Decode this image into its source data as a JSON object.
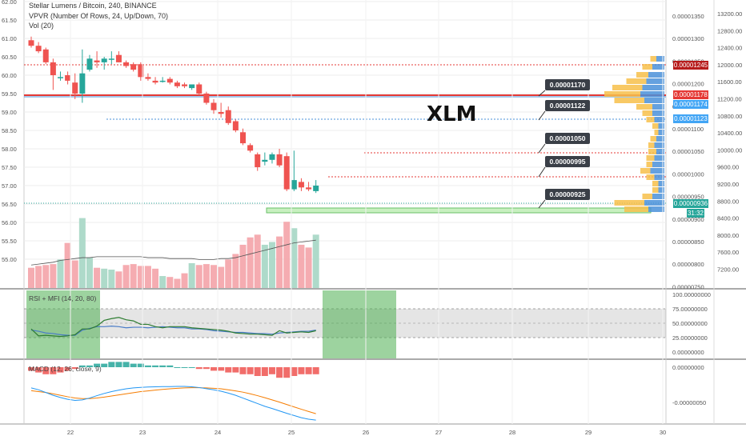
{
  "header": {
    "symbol_line": "Stellar Lumens / Bitcoin, 240, BINANCE",
    "vpvr_line": "VPVR (Number Of Rows, 24, Up/Down, 70)",
    "vol_line": "Vol (20)"
  },
  "annotation": "XLM",
  "callouts": [
    "0.00001170",
    "0.00001122",
    "0.00001050",
    "0.00000995",
    "0.00000925"
  ],
  "price_tags": {
    "red": "0.00001245",
    "red_line": "0.00001178",
    "blue1": "0.00001174",
    "blue2": "0.00001123",
    "current": "0.00000936",
    "timer": "31:32"
  },
  "indicators": {
    "rsi_label": "RSI + MFI (14, 20, 80)",
    "macd_label": "MACD (12, 26, close, 9)"
  },
  "colors": {
    "up": "#26a69a",
    "down": "#ef5350",
    "vol_up": "#a5d6c4",
    "vol_down": "#f4a3a8",
    "vpvr_up": "#f7c04a",
    "vpvr_down": "#4a90d9"
  },
  "chart_data": {
    "type": "candlestick",
    "x_ticks": [
      "22",
      "23",
      "24",
      "25",
      "26",
      "27",
      "28",
      "29",
      "30"
    ],
    "left_axis": [
      "62.00",
      "61.50",
      "61.00",
      "60.50",
      "60.00",
      "59.50",
      "59.00",
      "58.50",
      "58.00",
      "57.50",
      "57.00",
      "56.50",
      "56.00",
      "55.50",
      "55.00"
    ],
    "price_axis": [
      "0.00001350",
      "0.00001300",
      "0.00001250",
      "0.00001200",
      "0.00001150",
      "0.00001100",
      "0.00001050",
      "0.00001000",
      "0.00000950",
      "0.00000900",
      "0.00000850",
      "0.00000800",
      "0.00000750"
    ],
    "right_axis": [
      "13200.00",
      "12800.00",
      "12400.00",
      "12000.00",
      "11600.00",
      "11200.00",
      "10800.00",
      "10400.00",
      "10000.00",
      "9600.00",
      "9200.00",
      "8800.00",
      "8400.00",
      "8000.00",
      "7600.00",
      "7200.00"
    ],
    "rsi_axis": [
      "100.00000000",
      "75.00000000",
      "50.00000000",
      "25.00000000",
      "0.00000000"
    ],
    "macd_axis": [
      "0.00000000",
      "-0.00000050"
    ],
    "candles": [
      {
        "o": 60.95,
        "h": 61.05,
        "l": 60.75,
        "c": 60.8
      },
      {
        "o": 60.8,
        "h": 60.9,
        "l": 60.6,
        "c": 60.65
      },
      {
        "o": 60.7,
        "h": 60.75,
        "l": 60.3,
        "c": 60.35
      },
      {
        "o": 60.35,
        "h": 60.45,
        "l": 59.6,
        "c": 60.0
      },
      {
        "o": 59.95,
        "h": 60.1,
        "l": 59.85,
        "c": 59.95
      },
      {
        "o": 60.0,
        "h": 60.1,
        "l": 59.75,
        "c": 59.85
      },
      {
        "o": 59.8,
        "h": 60.05,
        "l": 59.35,
        "c": 59.5
      },
      {
        "o": 59.5,
        "h": 60.7,
        "l": 59.25,
        "c": 60.05
      },
      {
        "o": 60.15,
        "h": 60.55,
        "l": 60.1,
        "c": 60.45
      },
      {
        "o": 60.4,
        "h": 60.65,
        "l": 60.2,
        "c": 60.35
      },
      {
        "o": 60.35,
        "h": 60.5,
        "l": 60.15,
        "c": 60.45
      },
      {
        "o": 60.45,
        "h": 60.65,
        "l": 60.3,
        "c": 60.45
      },
      {
        "o": 60.55,
        "h": 60.65,
        "l": 60.35,
        "c": 60.35
      },
      {
        "o": 60.35,
        "h": 60.4,
        "l": 60.2,
        "c": 60.25
      },
      {
        "o": 60.3,
        "h": 60.35,
        "l": 60.1,
        "c": 60.15
      },
      {
        "o": 60.3,
        "h": 60.35,
        "l": 59.85,
        "c": 59.95
      },
      {
        "o": 59.95,
        "h": 60.05,
        "l": 59.85,
        "c": 59.9
      },
      {
        "o": 59.85,
        "h": 59.95,
        "l": 59.75,
        "c": 59.8
      },
      {
        "o": 59.85,
        "h": 59.95,
        "l": 59.8,
        "c": 59.85
      },
      {
        "o": 59.9,
        "h": 59.95,
        "l": 59.75,
        "c": 59.8
      },
      {
        "o": 59.8,
        "h": 59.85,
        "l": 59.65,
        "c": 59.7
      },
      {
        "o": 59.75,
        "h": 59.8,
        "l": 59.65,
        "c": 59.7
      },
      {
        "o": 59.65,
        "h": 59.75,
        "l": 59.6,
        "c": 59.75
      },
      {
        "o": 59.75,
        "h": 59.8,
        "l": 59.45,
        "c": 59.5
      },
      {
        "o": 59.5,
        "h": 59.55,
        "l": 59.2,
        "c": 59.25
      },
      {
        "o": 59.25,
        "h": 59.35,
        "l": 58.95,
        "c": 59.05
      },
      {
        "o": 59.0,
        "h": 59.25,
        "l": 58.85,
        "c": 58.95
      },
      {
        "o": 59.05,
        "h": 59.15,
        "l": 58.65,
        "c": 58.7
      },
      {
        "o": 58.75,
        "h": 58.8,
        "l": 58.45,
        "c": 58.5
      },
      {
        "o": 58.45,
        "h": 58.55,
        "l": 58.1,
        "c": 58.15
      },
      {
        "o": 58.1,
        "h": 58.15,
        "l": 57.9,
        "c": 57.95
      },
      {
        "o": 57.85,
        "h": 57.9,
        "l": 57.4,
        "c": 57.5
      },
      {
        "o": 57.65,
        "h": 57.9,
        "l": 57.55,
        "c": 57.7
      },
      {
        "o": 57.7,
        "h": 57.9,
        "l": 57.6,
        "c": 57.85
      },
      {
        "o": 57.85,
        "h": 58.0,
        "l": 57.5,
        "c": 57.55
      },
      {
        "o": 57.8,
        "h": 57.9,
        "l": 56.85,
        "c": 56.9
      },
      {
        "o": 56.9,
        "h": 57.95,
        "l": 56.85,
        "c": 57.15
      },
      {
        "o": 57.1,
        "h": 57.2,
        "l": 56.85,
        "c": 56.95
      },
      {
        "o": 56.95,
        "h": 57.1,
        "l": 56.85,
        "c": 56.9
      },
      {
        "o": 56.85,
        "h": 57.15,
        "l": 56.8,
        "c": 57.0
      }
    ],
    "volume": [
      0.22,
      0.24,
      0.25,
      0.26,
      0.31,
      0.49,
      0.3,
      0.76,
      0.33,
      0.22,
      0.21,
      0.2,
      0.18,
      0.25,
      0.26,
      0.24,
      0.24,
      0.21,
      0.13,
      0.12,
      0.1,
      0.16,
      0.27,
      0.25,
      0.26,
      0.25,
      0.23,
      0.31,
      0.37,
      0.47,
      0.55,
      0.58,
      0.47,
      0.5,
      0.56,
      0.72,
      0.65,
      0.47,
      0.44,
      0.58
    ],
    "volume_ma": [
      0.25,
      0.26,
      0.27,
      0.28,
      0.3,
      0.31,
      0.32,
      0.33,
      0.33,
      0.34,
      0.34,
      0.34,
      0.34,
      0.34,
      0.34,
      0.34,
      0.33,
      0.33,
      0.33,
      0.32,
      0.32,
      0.32,
      0.32,
      0.31,
      0.31,
      0.31,
      0.32,
      0.32,
      0.33,
      0.35,
      0.37,
      0.39,
      0.41,
      0.43,
      0.45,
      0.47,
      0.49,
      0.5,
      0.51,
      0.52
    ],
    "rsi": [
      40,
      28,
      29,
      28,
      27,
      28,
      30,
      40,
      40,
      45,
      55,
      58,
      60,
      56,
      54,
      48,
      48,
      44,
      42,
      44,
      44,
      44,
      42,
      41,
      40,
      39,
      38,
      36,
      33,
      32,
      31,
      31,
      30,
      29,
      37,
      33,
      34,
      35,
      34,
      37
    ],
    "mfi": [
      38,
      36,
      33,
      32,
      30,
      29,
      29,
      38,
      41,
      44,
      44,
      45,
      44,
      42,
      43,
      43,
      42,
      43,
      44,
      43,
      42,
      42,
      40,
      40,
      39,
      37,
      36,
      35,
      34,
      34,
      33,
      32,
      32,
      31,
      33,
      34,
      35,
      36,
      36,
      38
    ],
    "macd_hist": [
      -2,
      -3,
      -4,
      -4,
      -3,
      -2,
      -1,
      1,
      1,
      2,
      2,
      3,
      3,
      3,
      2,
      2,
      1,
      1,
      1,
      1,
      0,
      0,
      0,
      -1,
      -1,
      -2,
      -2,
      -3,
      -3,
      -4,
      -4,
      -5,
      -5,
      -4,
      -6,
      -6,
      -5,
      -4,
      -4,
      -4
    ],
    "macd_line": [
      -0.3,
      -0.4,
      -0.55,
      -0.7,
      -0.82,
      -0.92,
      -0.98,
      -0.95,
      -0.85,
      -0.72,
      -0.6,
      -0.5,
      -0.42,
      -0.35,
      -0.3,
      -0.27,
      -0.25,
      -0.24,
      -0.23,
      -0.23,
      -0.22,
      -0.22,
      -0.24,
      -0.28,
      -0.34,
      -0.4,
      -0.48,
      -0.58,
      -0.7,
      -0.85,
      -1.0,
      -1.15,
      -1.3,
      -1.42,
      -1.55,
      -1.68,
      -1.8,
      -1.92,
      -2.0,
      -2.05
    ],
    "signal_line": [
      -0.45,
      -0.5,
      -0.55,
      -0.62,
      -0.7,
      -0.78,
      -0.85,
      -0.88,
      -0.88,
      -0.85,
      -0.8,
      -0.74,
      -0.68,
      -0.62,
      -0.56,
      -0.5,
      -0.46,
      -0.42,
      -0.38,
      -0.35,
      -0.32,
      -0.3,
      -0.29,
      -0.29,
      -0.3,
      -0.32,
      -0.35,
      -0.4,
      -0.46,
      -0.53,
      -0.62,
      -0.72,
      -0.83,
      -0.95,
      -1.07,
      -1.2,
      -1.33,
      -1.46,
      -1.58,
      -1.7
    ]
  }
}
